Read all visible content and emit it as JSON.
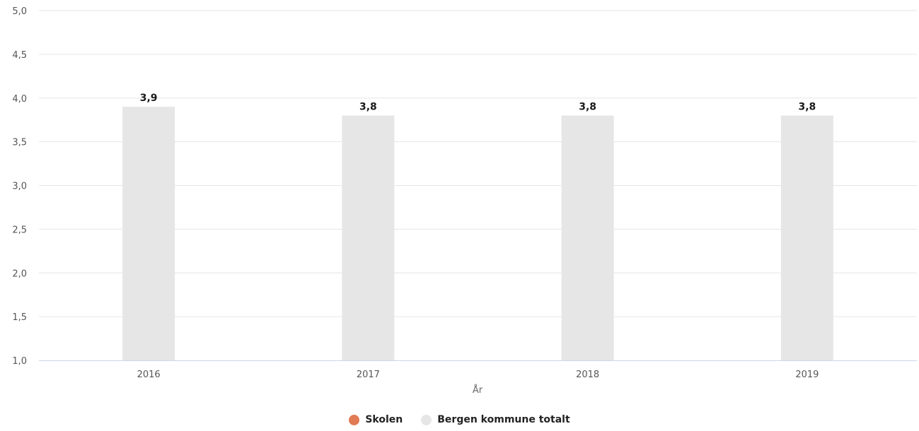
{
  "chart_data": {
    "type": "bar",
    "categories": [
      "2016",
      "2017",
      "2018",
      "2019"
    ],
    "series": [
      {
        "name": "Skolen",
        "values": [
          null,
          null,
          null,
          null
        ],
        "color": "#e07b54"
      },
      {
        "name": "Bergen kommune totalt",
        "values": [
          3.9,
          3.8,
          3.8,
          3.8
        ],
        "color": "#e6e6e6"
      }
    ],
    "data_labels": [
      "3,9",
      "3,8",
      "3,8",
      "3,8"
    ],
    "xlabel": "År",
    "ylabel": "",
    "ylim": [
      1.0,
      5.0
    ],
    "yticks": [
      "1,0",
      "1,5",
      "2,0",
      "2,5",
      "3,0",
      "3,5",
      "4,0",
      "4,5",
      "5,0"
    ],
    "grid": true,
    "legend_position": "bottom-center",
    "gridline_color": "#e6e6e6",
    "axis_line_color": "#ccd6eb"
  }
}
